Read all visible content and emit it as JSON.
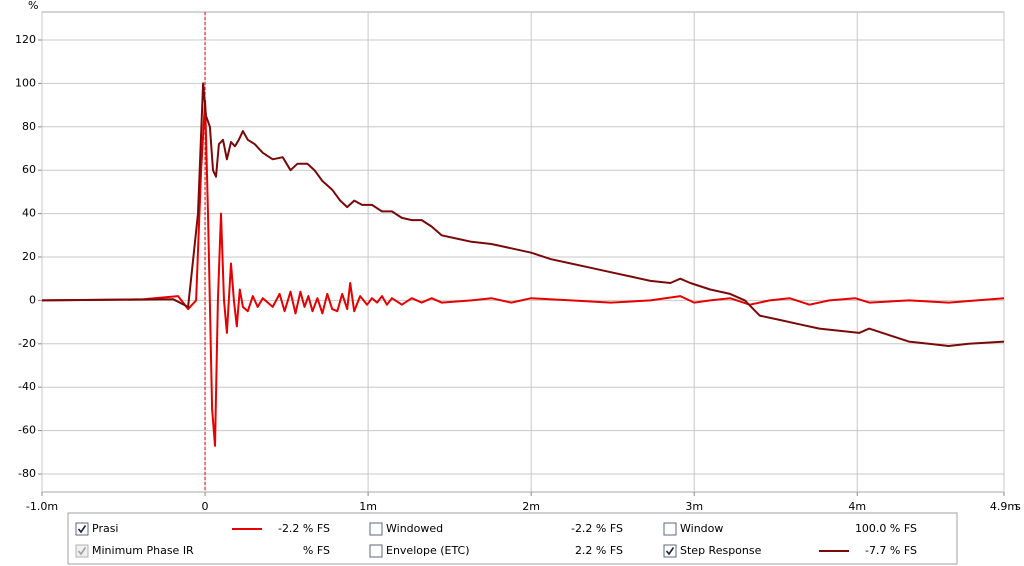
{
  "chart_data": {
    "type": "line",
    "y_label": "%",
    "x_unit": "s",
    "xlim": [
      -1.0,
      4.9
    ],
    "ylim": [
      -88.3,
      132.9
    ],
    "xticks": [
      {
        "value": -1.0,
        "label": "-1.0m"
      },
      0,
      {
        "value": 1,
        "label": "1m"
      },
      {
        "value": 2,
        "label": "2m"
      },
      {
        "value": 3,
        "label": "3m"
      },
      {
        "value": 4,
        "label": "4m"
      },
      {
        "value": 4.9,
        "label": "4.9m"
      }
    ],
    "yticks": [
      120,
      100,
      80,
      60,
      40,
      20,
      0,
      -20,
      -40,
      -60,
      -80
    ],
    "grid": true,
    "series": [
      {
        "name": "Prasi",
        "color": "#e60000",
        "x": [
          -1.0,
          -0.378,
          -0.165,
          -0.104,
          -0.055,
          -0.024,
          0,
          0.018,
          0.043,
          0.061,
          0.079,
          0.098,
          0.116,
          0.134,
          0.159,
          0.177,
          0.195,
          0.213,
          0.232,
          0.262,
          0.293,
          0.323,
          0.354,
          0.415,
          0.457,
          0.488,
          0.524,
          0.555,
          0.585,
          0.61,
          0.634,
          0.659,
          0.689,
          0.72,
          0.75,
          0.78,
          0.811,
          0.841,
          0.872,
          0.89,
          0.915,
          0.951,
          0.994,
          1.024,
          1.055,
          1.085,
          1.116,
          1.146,
          1.207,
          1.268,
          1.329,
          1.39,
          1.451,
          1.634,
          1.756,
          1.878,
          2.0,
          2.244,
          2.488,
          2.732,
          2.915,
          3.0,
          3.098,
          3.22,
          3.341,
          3.463,
          3.585,
          3.707,
          3.829,
          3.988,
          4.073,
          4.317,
          4.561,
          4.9
        ],
        "values": [
          0,
          0.5,
          2,
          -4,
          0,
          60,
          92,
          40,
          -50,
          -67,
          0,
          40,
          0,
          -15,
          17,
          0,
          -12,
          5,
          -3,
          -5,
          2,
          -3,
          1,
          -3,
          3,
          -5,
          4,
          -6,
          4,
          -3,
          2,
          -5,
          1,
          -6,
          3,
          -4,
          -5,
          3,
          -4,
          8,
          -5,
          2,
          -2,
          1,
          -1,
          2,
          -2,
          1,
          -2,
          1,
          -1,
          1,
          -1,
          0,
          1,
          -1,
          1,
          0,
          -1,
          0,
          2,
          -1,
          0,
          1,
          -2,
          0,
          1,
          -2,
          0,
          1,
          -1,
          0,
          -1,
          1
        ]
      },
      {
        "name": "Step Response",
        "color": "#7a0a0a",
        "x": [
          -1.0,
          -0.195,
          -0.104,
          -0.043,
          -0.012,
          0.006,
          0.03,
          0.049,
          0.067,
          0.085,
          0.11,
          0.134,
          0.159,
          0.183,
          0.207,
          0.232,
          0.262,
          0.305,
          0.354,
          0.415,
          0.476,
          0.524,
          0.567,
          0.628,
          0.671,
          0.72,
          0.78,
          0.829,
          0.872,
          0.915,
          0.963,
          1.024,
          1.085,
          1.146,
          1.207,
          1.268,
          1.329,
          1.39,
          1.451,
          1.573,
          1.634,
          1.756,
          1.878,
          2.0,
          2.122,
          2.244,
          2.366,
          2.488,
          2.61,
          2.732,
          2.854,
          2.915,
          2.976,
          3.098,
          3.22,
          3.311,
          3.402,
          3.524,
          3.646,
          3.768,
          3.89,
          4.012,
          4.073,
          4.195,
          4.317,
          4.439,
          4.561,
          4.683,
          4.9
        ],
        "values": [
          0,
          0.5,
          -3,
          40,
          100,
          85,
          80,
          60,
          57,
          72,
          74,
          65,
          73,
          71,
          74,
          78,
          74,
          72,
          68,
          65,
          66,
          60,
          63,
          63,
          60,
          55,
          51,
          46,
          43,
          46,
          44,
          44,
          41,
          41,
          38,
          37,
          37,
          34,
          30,
          28,
          27,
          26,
          24,
          22,
          19,
          17,
          15,
          13,
          11,
          9,
          8,
          10,
          8,
          5,
          3,
          0,
          -7,
          -9,
          -11,
          -13,
          -14,
          -15,
          -13,
          -16,
          -19,
          -20,
          -21,
          -20,
          -19
        ]
      }
    ],
    "legend_panel": [
      {
        "label": "Prasi",
        "checked": true,
        "color": "#e60000",
        "line": "#e60000",
        "readout": "-2.2 % FS"
      },
      {
        "label": "Windowed",
        "checked": false,
        "color": "#cc0000",
        "readout": "-2.2 % FS"
      },
      {
        "label": "Window",
        "checked": false,
        "color": "#0000cc",
        "readout": "100.0 % FS"
      },
      {
        "label": "Minimum Phase IR",
        "checked": true,
        "disabled": true,
        "color": "#a0a0a0",
        "readout": "% FS"
      },
      {
        "label": "Envelope (ETC)",
        "checked": false,
        "color": "#b00000",
        "readout": "2.2 % FS"
      },
      {
        "label": "Step Response",
        "checked": true,
        "color": "#6a0a0a",
        "line": "#7a0a0a",
        "readout": "-7.7 % FS"
      }
    ]
  }
}
